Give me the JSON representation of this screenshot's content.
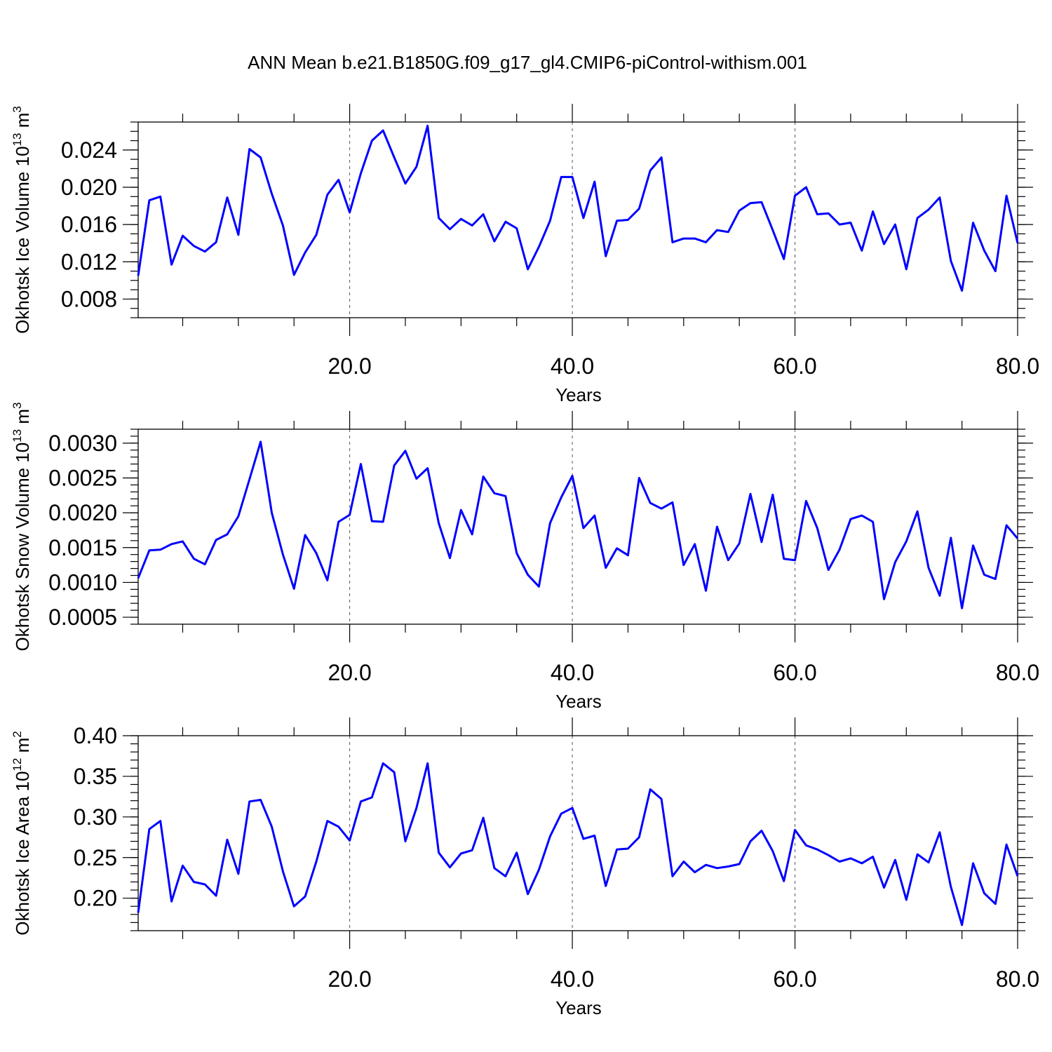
{
  "figure": {
    "title": "ANN Mean b.e21.B1850G.f09_g17_gl4.CMIP6-piControl-withism.001"
  },
  "chart_data": [
    {
      "type": "line",
      "xlabel": "Years",
      "ylabel": {
        "prefix": "Okhotsk Ice Volume 10",
        "exp": "13",
        "unit": " m",
        "unit_exp": "3"
      },
      "xlim": [
        1,
        80
      ],
      "ylim": [
        0.006,
        0.027
      ],
      "xticks": [
        20,
        40,
        60,
        80
      ],
      "xtick_labels": [
        "20.0",
        "40.0",
        "60.0",
        "80.0"
      ],
      "yticks": [
        0.008,
        0.012,
        0.016,
        0.02,
        0.024
      ],
      "ytick_labels": [
        "0.008",
        "0.012",
        "0.016",
        "0.020",
        "0.024"
      ],
      "yminor_step": 0.001,
      "xminor_step": 5,
      "grid_x": [
        20,
        40,
        60
      ],
      "color": "#0000ff",
      "x_start": 1,
      "values": [
        0.0105,
        0.0186,
        0.019,
        0.0117,
        0.0148,
        0.0137,
        0.0131,
        0.0141,
        0.0189,
        0.0149,
        0.0241,
        0.0232,
        0.0193,
        0.0159,
        0.0106,
        0.013,
        0.0149,
        0.0192,
        0.0208,
        0.0173,
        0.0215,
        0.025,
        0.0261,
        0.0232,
        0.0204,
        0.0222,
        0.0266,
        0.0167,
        0.0155,
        0.0166,
        0.0159,
        0.0171,
        0.0142,
        0.0163,
        0.0156,
        0.0112,
        0.0136,
        0.0164,
        0.0211,
        0.0211,
        0.0167,
        0.0206,
        0.0126,
        0.0164,
        0.0165,
        0.0177,
        0.0218,
        0.0232,
        0.0141,
        0.0145,
        0.0145,
        0.0141,
        0.0154,
        0.0152,
        0.0175,
        0.0183,
        0.0184,
        0.0154,
        0.0123,
        0.0191,
        0.02,
        0.0171,
        0.0172,
        0.016,
        0.0162,
        0.0132,
        0.0174,
        0.0139,
        0.016,
        0.0112,
        0.0167,
        0.0176,
        0.0189,
        0.0121,
        0.0089,
        0.0162,
        0.0132,
        0.011,
        0.0191,
        0.014
      ]
    },
    {
      "type": "line",
      "xlabel": "Years",
      "ylabel": {
        "prefix": "Okhotsk Snow Volume 10",
        "exp": "13",
        "unit": " m",
        "unit_exp": "3"
      },
      "xlim": [
        1,
        80
      ],
      "ylim": [
        0.0004,
        0.0032
      ],
      "xticks": [
        20,
        40,
        60,
        80
      ],
      "xtick_labels": [
        "20.0",
        "40.0",
        "60.0",
        "80.0"
      ],
      "yticks": [
        0.0005,
        0.001,
        0.0015,
        0.002,
        0.0025,
        0.003
      ],
      "ytick_labels": [
        "0.0005",
        "0.0010",
        "0.0015",
        "0.0020",
        "0.0025",
        "0.0030"
      ],
      "yminor_step": 0.0001,
      "xminor_step": 5,
      "grid_x": [
        20,
        40,
        60
      ],
      "color": "#0000ff",
      "x_start": 1,
      "values": [
        0.00106,
        0.00146,
        0.00147,
        0.00155,
        0.00159,
        0.00134,
        0.00126,
        0.00161,
        0.00169,
        0.00195,
        0.00248,
        0.00302,
        0.002,
        0.0014,
        0.00091,
        0.00168,
        0.00142,
        0.00103,
        0.00187,
        0.00197,
        0.0027,
        0.00188,
        0.00187,
        0.00268,
        0.00289,
        0.00249,
        0.00264,
        0.00185,
        0.00135,
        0.00204,
        0.00169,
        0.00252,
        0.00228,
        0.00224,
        0.00142,
        0.00111,
        0.00094,
        0.00185,
        0.00222,
        0.00253,
        0.00178,
        0.00196,
        0.00121,
        0.00149,
        0.00139,
        0.0025,
        0.00214,
        0.00206,
        0.00215,
        0.00125,
        0.00155,
        0.00088,
        0.0018,
        0.00132,
        0.00156,
        0.00227,
        0.00158,
        0.00226,
        0.00134,
        0.00132,
        0.00217,
        0.00178,
        0.00118,
        0.00147,
        0.00191,
        0.00196,
        0.00187,
        0.00076,
        0.00129,
        0.00159,
        0.00202,
        0.00121,
        0.00081,
        0.00164,
        0.00063,
        0.00153,
        0.00111,
        0.00105,
        0.00182,
        0.00163
      ]
    },
    {
      "type": "line",
      "xlabel": "Years",
      "ylabel": {
        "prefix": "Okhotsk Ice Area 10",
        "exp": "12",
        "unit": " m",
        "unit_exp": "2"
      },
      "xlim": [
        1,
        80
      ],
      "ylim": [
        0.16,
        0.4
      ],
      "xticks": [
        20,
        40,
        60,
        80
      ],
      "xtick_labels": [
        "20.0",
        "40.0",
        "60.0",
        "80.0"
      ],
      "yticks": [
        0.2,
        0.25,
        0.3,
        0.35,
        0.4
      ],
      "ytick_labels": [
        "0.20",
        "0.25",
        "0.30",
        "0.35",
        "0.40"
      ],
      "yminor_step": 0.01,
      "xminor_step": 5,
      "grid_x": [
        20,
        40,
        60
      ],
      "color": "#0000ff",
      "x_start": 1,
      "values": [
        0.182,
        0.285,
        0.295,
        0.196,
        0.24,
        0.22,
        0.217,
        0.203,
        0.272,
        0.23,
        0.319,
        0.321,
        0.288,
        0.233,
        0.19,
        0.202,
        0.245,
        0.295,
        0.288,
        0.271,
        0.319,
        0.324,
        0.366,
        0.355,
        0.27,
        0.311,
        0.366,
        0.256,
        0.238,
        0.255,
        0.259,
        0.299,
        0.237,
        0.227,
        0.256,
        0.205,
        0.235,
        0.276,
        0.304,
        0.311,
        0.273,
        0.277,
        0.215,
        0.26,
        0.261,
        0.275,
        0.334,
        0.322,
        0.227,
        0.245,
        0.232,
        0.241,
        0.237,
        0.239,
        0.242,
        0.27,
        0.283,
        0.258,
        0.221,
        0.284,
        0.265,
        0.26,
        0.253,
        0.245,
        0.249,
        0.243,
        0.251,
        0.213,
        0.247,
        0.198,
        0.254,
        0.244,
        0.281,
        0.214,
        0.167,
        0.243,
        0.206,
        0.193,
        0.266,
        0.227
      ]
    }
  ]
}
